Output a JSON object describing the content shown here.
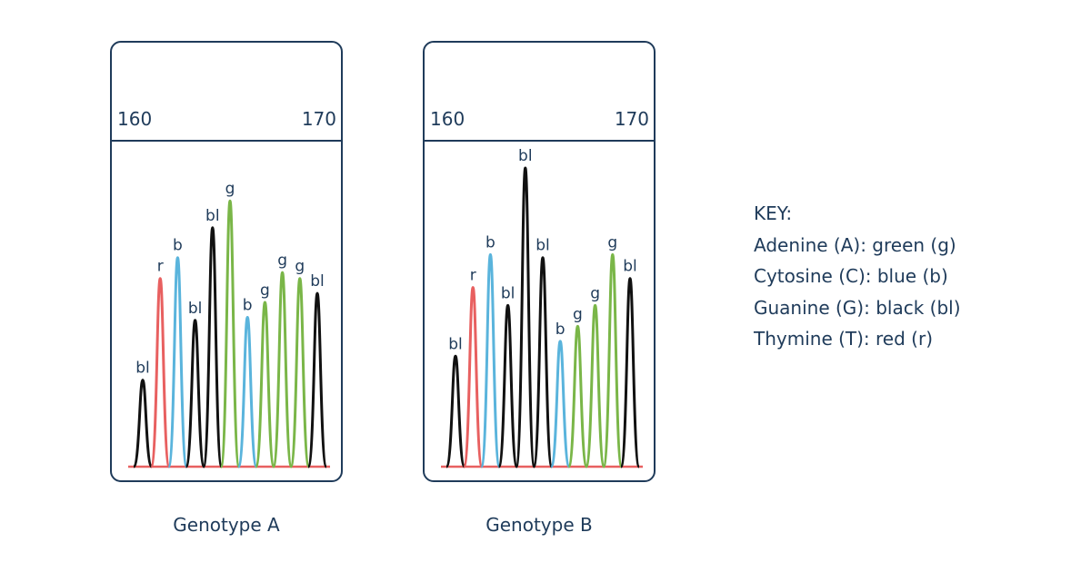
{
  "axis": {
    "start": "160",
    "end": "170"
  },
  "colors": {
    "g": "#7ab648",
    "b": "#5ab4dc",
    "bl": "#111111",
    "r": "#e86060",
    "frame": "#1f3b5a"
  },
  "genotypes": [
    {
      "caption": "Genotype A",
      "peaks": [
        {
          "label": "bl",
          "code": "bl",
          "height": 0.29
        },
        {
          "label": "r",
          "code": "r",
          "height": 0.63
        },
        {
          "label": "b",
          "code": "b",
          "height": 0.7
        },
        {
          "label": "bl",
          "code": "bl",
          "height": 0.49
        },
        {
          "label": "bl",
          "code": "bl",
          "height": 0.8
        },
        {
          "label": "g",
          "code": "g",
          "height": 0.89
        },
        {
          "label": "b",
          "code": "b",
          "height": 0.5
        },
        {
          "label": "g",
          "code": "g",
          "height": 0.55
        },
        {
          "label": "g",
          "code": "g",
          "height": 0.65
        },
        {
          "label": "g",
          "code": "g",
          "height": 0.63
        },
        {
          "label": "bl",
          "code": "bl",
          "height": 0.58
        }
      ]
    },
    {
      "caption": "Genotype B",
      "peaks": [
        {
          "label": "bl",
          "code": "bl",
          "height": 0.37
        },
        {
          "label": "r",
          "code": "r",
          "height": 0.6
        },
        {
          "label": "b",
          "code": "b",
          "height": 0.71
        },
        {
          "label": "bl",
          "code": "bl",
          "height": 0.54
        },
        {
          "label": "bl",
          "code": "bl",
          "height": 1.0
        },
        {
          "label": "bl",
          "code": "bl",
          "height": 0.7
        },
        {
          "label": "b",
          "code": "b",
          "height": 0.42
        },
        {
          "label": "g",
          "code": "g",
          "height": 0.47
        },
        {
          "label": "g",
          "code": "g",
          "height": 0.54
        },
        {
          "label": "g",
          "code": "g",
          "height": 0.71
        },
        {
          "label": "bl",
          "code": "bl",
          "height": 0.63
        }
      ]
    }
  ],
  "key": {
    "title": "KEY:",
    "items": [
      "Adenine (A): green (g)",
      "Cytosine (C): blue (b)",
      "Guanine (G): black (bl)",
      "Thymine (T): red (r)"
    ]
  }
}
